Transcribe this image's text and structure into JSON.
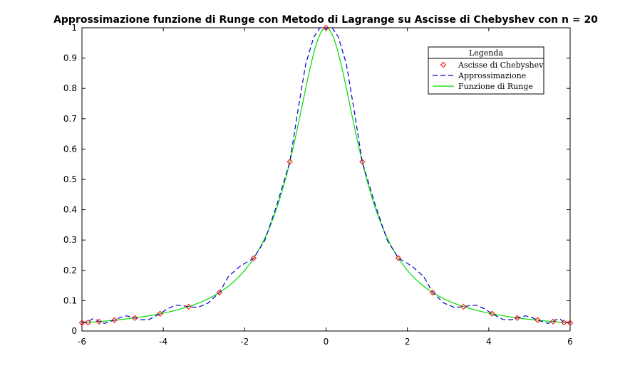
{
  "chart_data": {
    "type": "line",
    "title": "Approssimazione funzione di Runge con Metodo di Lagrange su Ascisse di Chebyshev con n = 20",
    "xlabel": "",
    "ylabel": "",
    "xlim": [
      -6,
      6
    ],
    "ylim": [
      0,
      1
    ],
    "xticks": [
      -6,
      -4,
      -2,
      0,
      2,
      4,
      6
    ],
    "yticks": [
      0,
      0.1,
      0.2,
      0.3,
      0.4,
      0.5,
      0.6,
      0.7,
      0.8,
      0.9,
      1
    ],
    "xtick_labels": [
      "-6",
      "-4",
      "-2",
      "0",
      "2",
      "4",
      "6"
    ],
    "ytick_labels": [
      "0",
      "0.1",
      "0.2",
      "0.3",
      "0.4",
      "0.5",
      "0.6",
      "0.7",
      "0.8",
      "0.9",
      "1"
    ],
    "grid": false,
    "legend": {
      "title": "Legenda",
      "placement": "top-right"
    },
    "series": [
      {
        "name": "Ascisse di Chebyshev",
        "style": "markers",
        "marker": "diamond",
        "color": "#ff0000",
        "x": [
          -6.0,
          -5.85,
          -5.58,
          -5.2,
          -4.7,
          -4.08,
          -3.38,
          -2.62,
          -1.78,
          -0.89,
          0.0,
          0.89,
          1.78,
          2.62,
          3.38,
          4.08,
          4.7,
          5.2,
          5.58,
          5.85,
          6.0
        ],
        "y": [
          0.027,
          0.028,
          0.031,
          0.036,
          0.043,
          0.057,
          0.08,
          0.127,
          0.24,
          0.558,
          1.0,
          0.558,
          0.24,
          0.127,
          0.08,
          0.057,
          0.043,
          0.036,
          0.031,
          0.028,
          0.027
        ]
      },
      {
        "name": "Approssimazione",
        "style": "dashed",
        "color": "#0000cc",
        "x": [
          -6.0,
          -5.92,
          -5.85,
          -5.75,
          -5.65,
          -5.58,
          -5.45,
          -5.3,
          -5.2,
          -5.05,
          -4.9,
          -4.7,
          -4.55,
          -4.35,
          -4.08,
          -3.9,
          -3.7,
          -3.55,
          -3.38,
          -3.15,
          -2.9,
          -2.62,
          -2.4,
          -2.1,
          -1.78,
          -1.5,
          -1.2,
          -0.89,
          -0.7,
          -0.5,
          -0.3,
          -0.15,
          0.0,
          0.15,
          0.3,
          0.5,
          0.7,
          0.89,
          1.2,
          1.5,
          1.78,
          2.1,
          2.4,
          2.62,
          2.9,
          3.15,
          3.38,
          3.55,
          3.7,
          3.9,
          4.08,
          4.35,
          4.55,
          4.7,
          4.9,
          5.05,
          5.2,
          5.3,
          5.45,
          5.58,
          5.65,
          5.75,
          5.85,
          5.92,
          6.0
        ],
        "y": [
          0.027,
          0.03,
          0.028,
          0.04,
          0.037,
          0.031,
          0.025,
          0.032,
          0.036,
          0.045,
          0.05,
          0.043,
          0.037,
          0.038,
          0.057,
          0.073,
          0.085,
          0.084,
          0.08,
          0.078,
          0.092,
          0.127,
          0.18,
          0.215,
          0.24,
          0.3,
          0.42,
          0.558,
          0.72,
          0.88,
          0.97,
          1.0,
          1.0,
          1.0,
          0.97,
          0.88,
          0.72,
          0.558,
          0.42,
          0.3,
          0.24,
          0.215,
          0.18,
          0.127,
          0.092,
          0.078,
          0.08,
          0.084,
          0.085,
          0.073,
          0.057,
          0.038,
          0.037,
          0.043,
          0.05,
          0.045,
          0.036,
          0.032,
          0.025,
          0.031,
          0.037,
          0.04,
          0.028,
          0.03,
          0.027
        ]
      },
      {
        "name": "Funzione di Runge",
        "style": "solid",
        "color": "#00dd00",
        "function": "1/(1+x^2)",
        "x": [
          -6.0,
          -5.5,
          -5.0,
          -4.5,
          -4.0,
          -3.5,
          -3.0,
          -2.5,
          -2.0,
          -1.75,
          -1.5,
          -1.25,
          -1.0,
          -0.8,
          -0.6,
          -0.4,
          -0.2,
          0.0,
          0.2,
          0.4,
          0.6,
          0.8,
          1.0,
          1.25,
          1.5,
          1.75,
          2.0,
          2.5,
          3.0,
          3.5,
          4.0,
          4.5,
          5.0,
          5.5,
          6.0
        ],
        "y": [
          0.027,
          0.032,
          0.038,
          0.047,
          0.059,
          0.075,
          0.1,
          0.138,
          0.2,
          0.246,
          0.308,
          0.39,
          0.5,
          0.61,
          0.735,
          0.862,
          0.962,
          1.0,
          0.962,
          0.862,
          0.735,
          0.61,
          0.5,
          0.39,
          0.308,
          0.246,
          0.2,
          0.138,
          0.1,
          0.075,
          0.059,
          0.047,
          0.038,
          0.032,
          0.027
        ]
      }
    ]
  }
}
